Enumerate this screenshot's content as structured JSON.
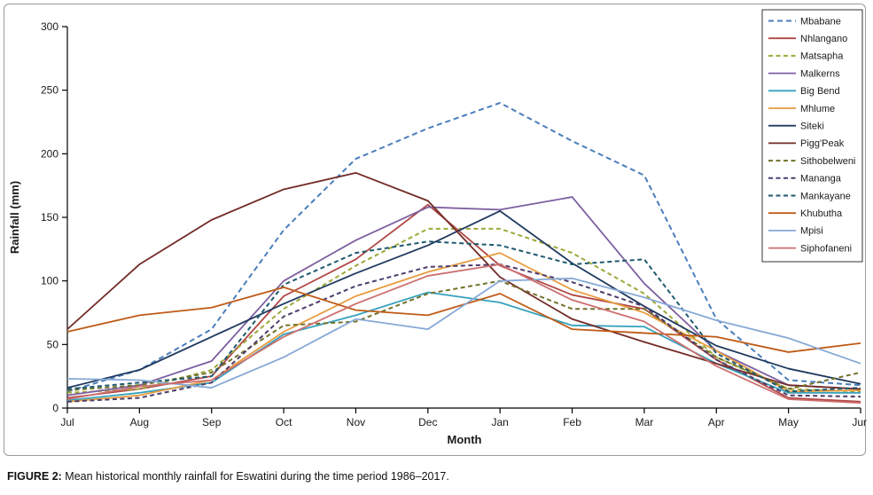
{
  "figure": {
    "caption_label": "FIGURE 2:",
    "caption_text": " Mean historical monthly rainfall for Eswatini during the time period 1986–2017."
  },
  "chart_data": {
    "type": "line",
    "title": "",
    "xlabel": "Month",
    "ylabel": "Rainfall (mm)",
    "x_categories": [
      "Jul",
      "Aug",
      "Sep",
      "Oct",
      "Nov",
      "Dec",
      "Jan",
      "Feb",
      "Mar",
      "Apr",
      "May",
      "Jun"
    ],
    "ylim": [
      0,
      300
    ],
    "yticks": [
      0,
      50,
      100,
      150,
      200,
      250,
      300
    ],
    "grid": false,
    "legend_position": "top-right",
    "series": [
      {
        "name": "Mbabane",
        "color": "#4a7ebb",
        "dash": "6 4",
        "values": [
          13,
          30,
          62,
          140,
          196,
          220,
          240,
          210,
          183,
          70,
          22,
          18
        ]
      },
      {
        "name": "Nhlangano",
        "color": "#b04745",
        "dash": "",
        "values": [
          8,
          15,
          25,
          88,
          117,
          160,
          112,
          89,
          78,
          38,
          8,
          5
        ]
      },
      {
        "name": "Matsapha",
        "color": "#9fa839",
        "dash": "5 3.5",
        "values": [
          12,
          15,
          30,
          78,
          112,
          141,
          141,
          122,
          90,
          40,
          15,
          13
        ]
      },
      {
        "name": "Malkerns",
        "color": "#7d5fa0",
        "dash": "",
        "values": [
          10,
          18,
          37,
          100,
          132,
          158,
          156,
          166,
          98,
          45,
          18,
          15
        ]
      },
      {
        "name": "Big Bend",
        "color": "#35a1bd",
        "dash": "",
        "values": [
          6,
          12,
          20,
          58,
          73,
          91,
          83,
          65,
          64,
          35,
          12,
          12
        ]
      },
      {
        "name": "Mhlume",
        "color": "#e89c3f",
        "dash": "",
        "values": [
          5,
          10,
          22,
          60,
          88,
          107,
          122,
          93,
          75,
          45,
          13,
          14
        ]
      },
      {
        "name": "Siteki",
        "color": "#1f3a60",
        "dash": "",
        "values": [
          16,
          30,
          56,
          82,
          106,
          128,
          155,
          114,
          80,
          49,
          31,
          19
        ]
      },
      {
        "name": "Pigg'Peak",
        "color": "#722b27",
        "dash": "",
        "values": [
          62,
          113,
          148,
          172,
          185,
          163,
          103,
          70,
          52,
          35,
          18,
          15
        ]
      },
      {
        "name": "Sithobelweni",
        "color": "#72722a",
        "dash": "5 3.5",
        "values": [
          14,
          18,
          28,
          65,
          68,
          90,
          100,
          78,
          78,
          40,
          15,
          28
        ]
      },
      {
        "name": "Mananga",
        "color": "#4e3d6b",
        "dash": "5 3.5",
        "values": [
          5,
          8,
          20,
          72,
          96,
          111,
          113,
          99,
          80,
          38,
          10,
          9
        ]
      },
      {
        "name": "Mankayane",
        "color": "#1e5a6e",
        "dash": "5 3.5",
        "values": [
          15,
          20,
          25,
          97,
          122,
          131,
          128,
          113,
          117,
          43,
          13,
          16
        ]
      },
      {
        "name": "Khubutha",
        "color": "#bf5b17",
        "dash": "",
        "values": [
          60,
          73,
          79,
          95,
          77,
          73,
          90,
          62,
          59,
          56,
          44,
          51
        ]
      },
      {
        "name": "Mpisi",
        "color": "#87a9d6",
        "dash": "",
        "values": [
          23,
          22,
          16,
          40,
          70,
          62,
          100,
          102,
          87,
          69,
          55,
          35
        ]
      },
      {
        "name": "Siphofaneni",
        "color": "#cd6f6f",
        "dash": "",
        "values": [
          7,
          17,
          22,
          56,
          82,
          104,
          113,
          85,
          68,
          33,
          7,
          4
        ]
      }
    ]
  }
}
